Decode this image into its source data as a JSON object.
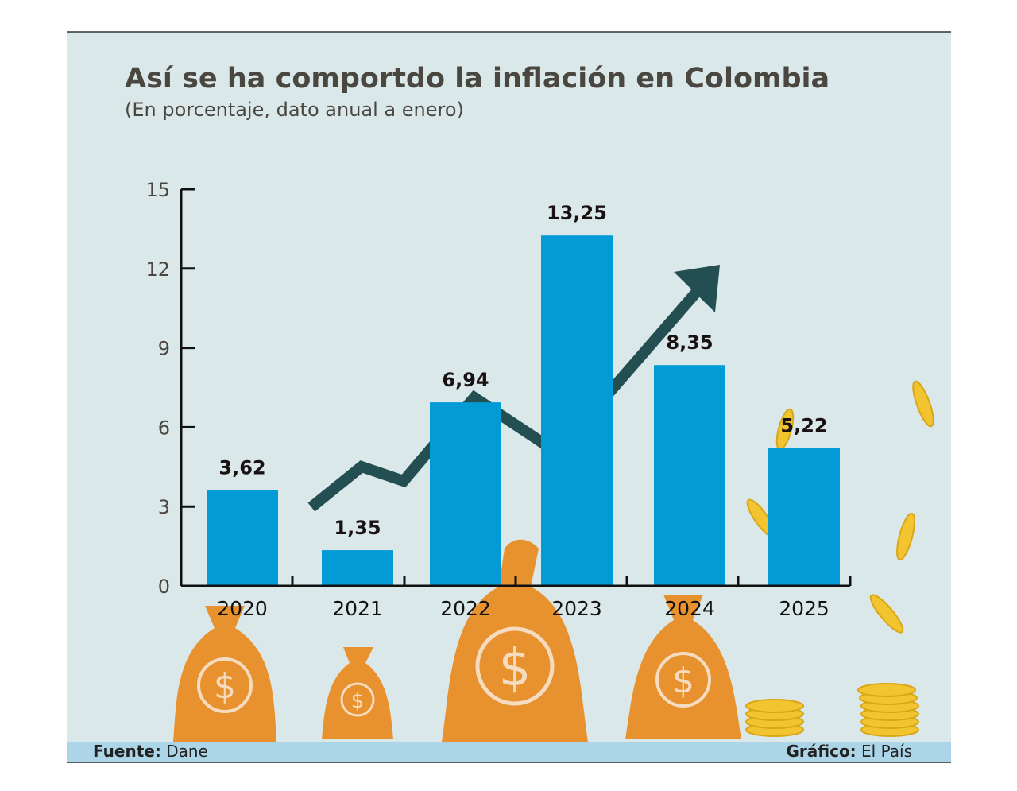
{
  "chart_data": {
    "type": "bar",
    "title": "Así se ha comportdo la inflación en Colombia",
    "subtitle": "(En porcentaje, dato anual a enero)",
    "categories": [
      "2020",
      "2021",
      "2022",
      "2023",
      "2024",
      "2025"
    ],
    "values": [
      3.62,
      1.35,
      6.94,
      13.25,
      8.35,
      5.22
    ],
    "data_labels": [
      "3,62",
      "1,35",
      "6,94",
      "13,25",
      "8,35",
      "5,22"
    ],
    "ylim": [
      0,
      15
    ],
    "yticks": [
      "0",
      "3",
      "6",
      "9",
      "12",
      "15"
    ],
    "grid": false,
    "bar_color": "#039bd6",
    "trend_arrow_color": "#234e52"
  },
  "footer": {
    "source_label": "Fuente:",
    "source_value": "Dane",
    "graphic_label": "Gráfico:",
    "graphic_value": "El País"
  },
  "colors": {
    "background": "#dbe8ea",
    "footer": "#acd5e8",
    "bags": "#e8912f",
    "coins": "#f2c530"
  }
}
